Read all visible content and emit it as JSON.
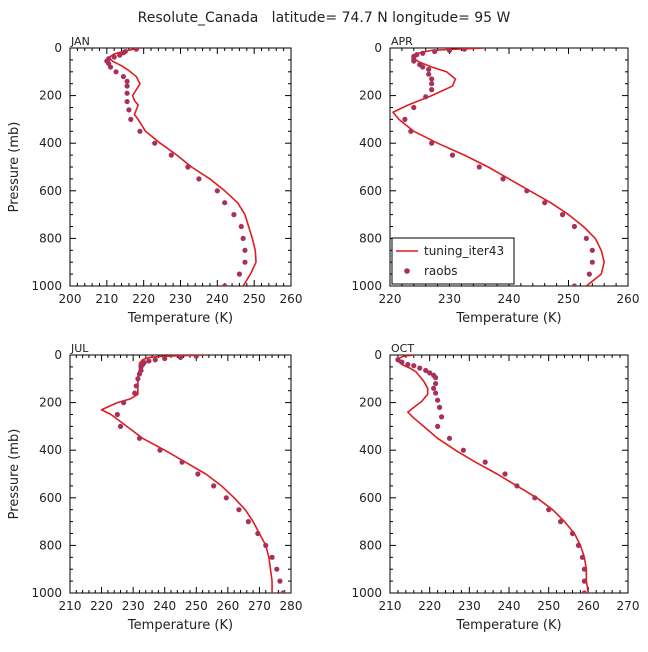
{
  "figure": {
    "title": "Resolute_Canada   latitude= 74.7 N longitude= 95 W"
  },
  "colors": {
    "model_line": "#e01c1c",
    "obs_marker": "#a8305c",
    "axes": "#000000"
  },
  "legend": {
    "panel_index": 1,
    "placement": "bottom-right",
    "entries": [
      {
        "label": "tuning_iter43",
        "kind": "line"
      },
      {
        "label": "raobs",
        "kind": "marker"
      }
    ]
  },
  "chart_data": [
    {
      "type": "line",
      "month": "JAN",
      "xlabel": "Temperature (K)",
      "ylabel": "Pressure (mb)",
      "xlim": [
        200,
        260
      ],
      "ylim": [
        1000,
        0
      ],
      "xticks": [
        200,
        210,
        220,
        230,
        240,
        250,
        260
      ],
      "yticks": [
        0,
        200,
        400,
        600,
        800,
        1000
      ],
      "series": [
        {
          "name": "tuning_iter43",
          "style": "line",
          "points": [
            [
              219,
              0
            ],
            [
              215,
              12
            ],
            [
              212,
              25
            ],
            [
              210.5,
              40
            ],
            [
              211.5,
              55
            ],
            [
              214,
              75
            ],
            [
              216,
              95
            ],
            [
              218,
              120
            ],
            [
              219,
              150
            ],
            [
              218,
              175
            ],
            [
              217,
              200
            ],
            [
              217.5,
              220
            ],
            [
              218.5,
              240
            ],
            [
              218,
              260
            ],
            [
              217.5,
              280
            ],
            [
              218.5,
              300
            ],
            [
              220.5,
              350
            ],
            [
              224.5,
              400
            ],
            [
              229,
              450
            ],
            [
              233,
              500
            ],
            [
              238,
              550
            ],
            [
              242,
              600
            ],
            [
              245.5,
              650
            ],
            [
              247.5,
              700
            ],
            [
              248.5,
              750
            ],
            [
              249.5,
              800
            ],
            [
              250.3,
              850
            ],
            [
              250.5,
              900
            ],
            [
              249,
              950
            ],
            [
              247,
              1000
            ]
          ]
        },
        {
          "name": "raobs",
          "style": "scatter",
          "points": [
            [
              218,
              5
            ],
            [
              215,
              15
            ],
            [
              214.5,
              20
            ],
            [
              213.5,
              30
            ],
            [
              212,
              38
            ],
            [
              210.5,
              45
            ],
            [
              210,
              55
            ],
            [
              210.5,
              65
            ],
            [
              211,
              80
            ],
            [
              212.5,
              100
            ],
            [
              214.5,
              120
            ],
            [
              215.5,
              140
            ],
            [
              215.5,
              160
            ],
            [
              215.5,
              190
            ],
            [
              215.5,
              225
            ],
            [
              216,
              260
            ],
            [
              216.5,
              300
            ],
            [
              219,
              350
            ],
            [
              223,
              400
            ],
            [
              227.5,
              450
            ],
            [
              232,
              500
            ],
            [
              235,
              550
            ],
            [
              240,
              600
            ],
            [
              242,
              650
            ],
            [
              244.5,
              700
            ],
            [
              246.5,
              750
            ],
            [
              247,
              800
            ],
            [
              247.5,
              850
            ],
            [
              247.5,
              900
            ],
            [
              246,
              950
            ],
            [
              242,
              1000
            ]
          ]
        }
      ]
    },
    {
      "type": "line",
      "month": "APR",
      "xlabel": "Temperature (K)",
      "ylabel": "",
      "xlim": [
        220,
        260
      ],
      "ylim": [
        1000,
        0
      ],
      "xticks": [
        220,
        230,
        240,
        250,
        260
      ],
      "yticks": [
        0,
        200,
        400,
        600,
        800,
        1000
      ],
      "series": [
        {
          "name": "tuning_iter43",
          "style": "line",
          "points": [
            [
              236,
              0
            ],
            [
              231,
              5
            ],
            [
              227,
              10
            ],
            [
              225,
              20
            ],
            [
              224,
              30
            ],
            [
              224,
              45
            ],
            [
              225,
              60
            ],
            [
              227,
              80
            ],
            [
              229.5,
              100
            ],
            [
              231,
              130
            ],
            [
              230.5,
              160
            ],
            [
              227,
              200
            ],
            [
              223,
              240
            ],
            [
              220.5,
              270
            ],
            [
              221.5,
              300
            ],
            [
              224,
              350
            ],
            [
              228,
              400
            ],
            [
              232.5,
              450
            ],
            [
              236.5,
              500
            ],
            [
              240,
              550
            ],
            [
              243.5,
              600
            ],
            [
              247,
              650
            ],
            [
              250,
              700
            ],
            [
              252.5,
              750
            ],
            [
              254.5,
              800
            ],
            [
              255.5,
              850
            ],
            [
              256,
              900
            ],
            [
              255.5,
              950
            ],
            [
              253,
              1000
            ]
          ]
        },
        {
          "name": "raobs",
          "style": "scatter",
          "points": [
            [
              232.5,
              5
            ],
            [
              230,
              10
            ],
            [
              227.5,
              15
            ],
            [
              225.5,
              22
            ],
            [
              224.5,
              28
            ],
            [
              224,
              35
            ],
            [
              224,
              45
            ],
            [
              224,
              55
            ],
            [
              225,
              70
            ],
            [
              225.5,
              80
            ],
            [
              226.5,
              90
            ],
            [
              226.5,
              110
            ],
            [
              227,
              130
            ],
            [
              227,
              150
            ],
            [
              227,
              175
            ],
            [
              226,
              205
            ],
            [
              224,
              250
            ],
            [
              222.5,
              300
            ],
            [
              223.5,
              350
            ],
            [
              227,
              400
            ],
            [
              230.5,
              450
            ],
            [
              235,
              500
            ],
            [
              239,
              550
            ],
            [
              243,
              600
            ],
            [
              246,
              650
            ],
            [
              249,
              700
            ],
            [
              251,
              750
            ],
            [
              253,
              800
            ],
            [
              254,
              850
            ],
            [
              254,
              900
            ],
            [
              253.5,
              950
            ],
            [
              251,
              1000
            ]
          ]
        }
      ]
    },
    {
      "type": "line",
      "month": "JUL",
      "xlabel": "Temperature (K)",
      "ylabel": "Pressure (mb)",
      "xlim": [
        210,
        280
      ],
      "ylim": [
        1000,
        0
      ],
      "xticks": [
        210,
        220,
        230,
        240,
        250,
        260,
        270,
        280
      ],
      "yticks": [
        0,
        200,
        400,
        600,
        800,
        1000
      ],
      "series": [
        {
          "name": "tuning_iter43",
          "style": "line",
          "points": [
            [
              253,
              0
            ],
            [
              240,
              5
            ],
            [
              235,
              10
            ],
            [
              233,
              20
            ],
            [
              232,
              35
            ],
            [
              232,
              60
            ],
            [
              231.5,
              90
            ],
            [
              231.5,
              130
            ],
            [
              231.5,
              165
            ],
            [
              229,
              185
            ],
            [
              225,
              200
            ],
            [
              220,
              230
            ],
            [
              223,
              250
            ],
            [
              226,
              280
            ],
            [
              229,
              310
            ],
            [
              233,
              350
            ],
            [
              240,
              400
            ],
            [
              246.5,
              450
            ],
            [
              253,
              500
            ],
            [
              258,
              550
            ],
            [
              262,
              600
            ],
            [
              265.5,
              650
            ],
            [
              268,
              700
            ],
            [
              270,
              750
            ],
            [
              272,
              800
            ],
            [
              273,
              850
            ],
            [
              273.5,
              900
            ],
            [
              274,
              950
            ],
            [
              274,
              1000
            ]
          ]
        },
        {
          "name": "raobs",
          "style": "scatter",
          "points": [
            [
              250,
              5
            ],
            [
              245,
              10
            ],
            [
              240,
              15
            ],
            [
              237,
              20
            ],
            [
              235,
              25
            ],
            [
              233.5,
              32
            ],
            [
              233,
              40
            ],
            [
              232.5,
              50
            ],
            [
              232.5,
              65
            ],
            [
              232,
              80
            ],
            [
              231.5,
              100
            ],
            [
              231,
              130
            ],
            [
              230.5,
              160
            ],
            [
              227,
              200
            ],
            [
              225,
              250
            ],
            [
              226,
              300
            ],
            [
              232,
              350
            ],
            [
              238.5,
              400
            ],
            [
              245.5,
              450
            ],
            [
              250.5,
              500
            ],
            [
              255.5,
              550
            ],
            [
              259.5,
              600
            ],
            [
              263.5,
              650
            ],
            [
              266.5,
              700
            ],
            [
              269.5,
              750
            ],
            [
              272,
              800
            ],
            [
              274,
              850
            ],
            [
              275.5,
              900
            ],
            [
              276.5,
              950
            ],
            [
              277.5,
              1000
            ]
          ]
        }
      ]
    },
    {
      "type": "line",
      "month": "OCT",
      "xlabel": "Temperature (K)",
      "ylabel": "",
      "xlim": [
        210,
        270
      ],
      "ylim": [
        1000,
        0
      ],
      "xticks": [
        210,
        220,
        230,
        240,
        250,
        260,
        270
      ],
      "yticks": [
        0,
        200,
        400,
        600,
        800,
        1000
      ],
      "series": [
        {
          "name": "tuning_iter43",
          "style": "line",
          "points": [
            [
              216,
              0
            ],
            [
              213.5,
              5
            ],
            [
              212,
              15
            ],
            [
              212,
              25
            ],
            [
              213,
              40
            ],
            [
              215,
              55
            ],
            [
              216.5,
              70
            ],
            [
              217.5,
              90
            ],
            [
              218.5,
              110
            ],
            [
              219.5,
              140
            ],
            [
              219.5,
              165
            ],
            [
              218,
              195
            ],
            [
              216,
              220
            ],
            [
              214.5,
              240
            ],
            [
              216,
              265
            ],
            [
              218.5,
              300
            ],
            [
              222,
              350
            ],
            [
              226.5,
              400
            ],
            [
              231.5,
              450
            ],
            [
              237,
              500
            ],
            [
              242,
              550
            ],
            [
              247,
              600
            ],
            [
              251,
              650
            ],
            [
              254,
              700
            ],
            [
              256.5,
              750
            ],
            [
              258,
              800
            ],
            [
              259,
              850
            ],
            [
              259.5,
              900
            ],
            [
              259.5,
              950
            ],
            [
              260,
              1000
            ]
          ]
        },
        {
          "name": "raobs",
          "style": "scatter",
          "points": [
            [
              212,
              20
            ],
            [
              213,
              30
            ],
            [
              214.5,
              40
            ],
            [
              216,
              45
            ],
            [
              217.5,
              55
            ],
            [
              219,
              65
            ],
            [
              220,
              75
            ],
            [
              221,
              85
            ],
            [
              221.5,
              95
            ],
            [
              221.5,
              120
            ],
            [
              221,
              140
            ],
            [
              221.5,
              160
            ],
            [
              222,
              190
            ],
            [
              222.5,
              220
            ],
            [
              223,
              260
            ],
            [
              222,
              300
            ],
            [
              225,
              350
            ],
            [
              228.5,
              400
            ],
            [
              234,
              450
            ],
            [
              239,
              500
            ],
            [
              242,
              550
            ],
            [
              246.5,
              600
            ],
            [
              250,
              650
            ],
            [
              253,
              700
            ],
            [
              256,
              750
            ],
            [
              257.5,
              800
            ],
            [
              258.5,
              850
            ],
            [
              259,
              900
            ],
            [
              259,
              950
            ],
            [
              259,
              1000
            ]
          ]
        }
      ]
    }
  ]
}
